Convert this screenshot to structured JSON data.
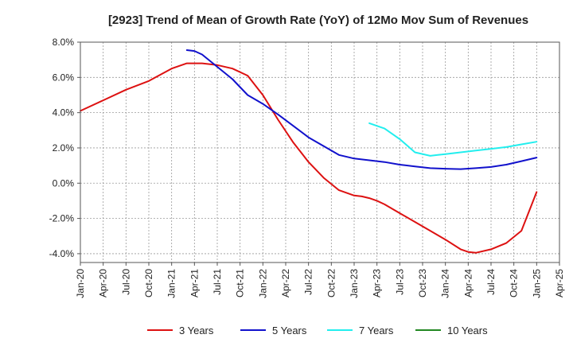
{
  "chart_data": {
    "type": "line",
    "title": "[2923]  Trend of Mean of Growth Rate (YoY) of 12Mo Mov Sum of Revenues",
    "xlabel": "",
    "ylabel": "",
    "ylim": [
      -4.5,
      8.0
    ],
    "y_ticks": [
      8.0,
      6.0,
      4.0,
      2.0,
      0.0,
      -2.0,
      -4.0
    ],
    "y_tick_labels": [
      "8.0%",
      "6.0%",
      "4.0%",
      "2.0%",
      "0.0%",
      "-2.0%",
      "-4.0%"
    ],
    "x_range": [
      0,
      63
    ],
    "x_tick_labels": [
      "Jan-20",
      "Apr-20",
      "Jul-20",
      "Oct-20",
      "Jan-21",
      "Apr-21",
      "Jul-21",
      "Oct-21",
      "Jan-22",
      "Apr-22",
      "Jul-22",
      "Oct-22",
      "Jan-23",
      "Apr-23",
      "Jul-23",
      "Oct-23",
      "Jan-24",
      "Apr-24",
      "Jul-24",
      "Oct-24",
      "Jan-25",
      "Apr-25"
    ],
    "x_unit": "months since Jan-20",
    "grid": true,
    "legend_position": "bottom",
    "series": [
      {
        "name": "3 Years",
        "color": "#dd1111",
        "x": [
          0,
          3,
          6,
          9,
          12,
          14,
          16,
          18,
          20,
          22,
          24,
          26,
          28,
          30,
          32,
          34,
          36,
          37,
          38,
          39,
          40,
          42,
          44,
          46,
          48,
          50,
          51,
          52,
          54,
          56,
          58,
          60
        ],
        "y": [
          4.1,
          4.7,
          5.3,
          5.8,
          6.5,
          6.8,
          6.8,
          6.7,
          6.5,
          6.1,
          5.0,
          3.6,
          2.3,
          1.2,
          0.3,
          -0.4,
          -0.7,
          -0.75,
          -0.85,
          -1.0,
          -1.2,
          -1.7,
          -2.2,
          -2.7,
          -3.2,
          -3.75,
          -3.9,
          -3.95,
          -3.75,
          -3.4,
          -2.7,
          -0.5
        ]
      },
      {
        "name": "5 Years",
        "color": "#1111cc",
        "x": [
          14,
          15,
          16,
          18,
          20,
          22,
          24,
          26,
          28,
          30,
          32,
          34,
          36,
          38,
          40,
          42,
          44,
          46,
          48,
          50,
          52,
          54,
          56,
          58,
          60
        ],
        "y": [
          7.55,
          7.5,
          7.3,
          6.6,
          5.9,
          5.0,
          4.5,
          3.9,
          3.25,
          2.6,
          2.1,
          1.6,
          1.4,
          1.3,
          1.2,
          1.05,
          0.95,
          0.85,
          0.82,
          0.8,
          0.85,
          0.92,
          1.05,
          1.25,
          1.45
        ]
      },
      {
        "name": "7 Years",
        "color": "#22eeee",
        "x": [
          38,
          40,
          42,
          44,
          46,
          47,
          48,
          50,
          52,
          54,
          56,
          58,
          60
        ],
        "y": [
          3.4,
          3.1,
          2.5,
          1.75,
          1.55,
          1.6,
          1.65,
          1.75,
          1.85,
          1.95,
          2.05,
          2.2,
          2.35
        ]
      },
      {
        "name": "10 Years",
        "color": "#228822",
        "x": [],
        "y": []
      }
    ]
  }
}
